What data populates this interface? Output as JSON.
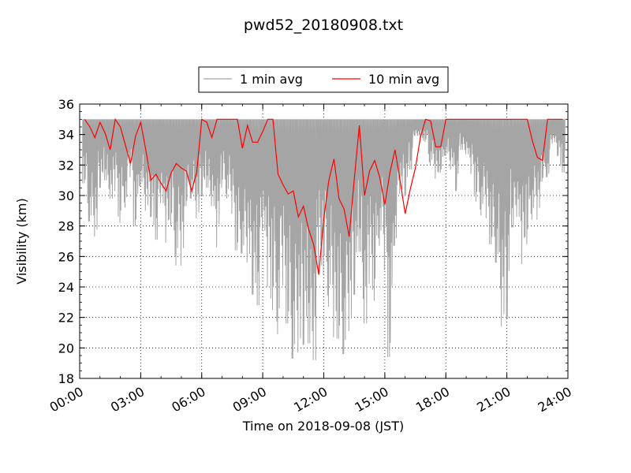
{
  "chart_data": {
    "type": "line",
    "title": "pwd52_20180908.txt",
    "xlabel": "Time on 2018-09-08 (JST)",
    "ylabel": "Visibility (km)",
    "xlim": [
      0,
      24
    ],
    "ylim": [
      18,
      36
    ],
    "grid": true,
    "legend_position": "top-center",
    "x_tick_labels": [
      "00:00",
      "03:00",
      "06:00",
      "09:00",
      "12:00",
      "15:00",
      "18:00",
      "21:00",
      "24:00"
    ],
    "y_tick_labels": [
      "18",
      "20",
      "22",
      "24",
      "26",
      "28",
      "30",
      "32",
      "34",
      "36"
    ],
    "sample_interval_hours": 0.25,
    "series": [
      {
        "name": "1 min avg",
        "color": "#a5a5a5",
        "x_start": 0.25,
        "upper": [
          35,
          35,
          35,
          35,
          35,
          35,
          35,
          35,
          35,
          35,
          35,
          35,
          35,
          35,
          35,
          35,
          35,
          35,
          35,
          35,
          35,
          35,
          35,
          35,
          35,
          35,
          35,
          35,
          35,
          35,
          35,
          35,
          35,
          35,
          35,
          35,
          35,
          35,
          35,
          35,
          35,
          35,
          35,
          35,
          35,
          35,
          35,
          35,
          35,
          35,
          35,
          35,
          35,
          35,
          35,
          35,
          35,
          35,
          35,
          35,
          35,
          35,
          35,
          35,
          35,
          35,
          35,
          35,
          35,
          35,
          35,
          35,
          35,
          35,
          35,
          35,
          35,
          35,
          35,
          35,
          35,
          35,
          35,
          35,
          35,
          35,
          35,
          35,
          35,
          35,
          35,
          35,
          35,
          35,
          35
        ],
        "lower": [
          30.8,
          28.3,
          27.3,
          30.5,
          31.0,
          29.8,
          30.3,
          28.2,
          29.2,
          31.2,
          28.0,
          30.6,
          29.0,
          28.6,
          27.1,
          29.5,
          26.9,
          28.0,
          25.4,
          25.4,
          29.3,
          29.8,
          28.5,
          30.0,
          30.5,
          29.3,
          26.6,
          30.5,
          29.8,
          28.8,
          26.4,
          26.2,
          25.6,
          23.5,
          22.8,
          27.7,
          24.0,
          22.5,
          20.9,
          24.1,
          21.6,
          19.3,
          19.7,
          20.2,
          20.3,
          19.2,
          24.9,
          24.8,
          22.7,
          20.7,
          20.6,
          19.6,
          21.1,
          23.5,
          26.3,
          21.6,
          24.2,
          23.1,
          26.7,
          25.1,
          19.4,
          26.7,
          30.1,
          30.0,
          31.7,
          33.9,
          33.5,
          33.5,
          32.0,
          31.1,
          31.5,
          32.6,
          31.7,
          30.3,
          33.0,
          32.7,
          31.4,
          29.6,
          28.7,
          28.5,
          26.8,
          25.6,
          21.4,
          21.9,
          27.9,
          28.6,
          25.5,
          26.8,
          28.4,
          28.4,
          30.9,
          31.2,
          33.4,
          32.6,
          31.5
        ]
      },
      {
        "name": "10 min avg",
        "color": "#ff0000",
        "x_start": 0.25,
        "values": [
          35.0,
          34.5,
          33.8,
          34.8,
          34.1,
          33.0,
          35.0,
          34.5,
          33.3,
          32.1,
          33.9,
          34.8,
          33.0,
          31.0,
          31.4,
          30.8,
          30.3,
          31.5,
          32.1,
          31.8,
          31.6,
          30.3,
          31.5,
          35.0,
          34.8,
          33.8,
          35.0,
          35.0,
          35.0,
          35.0,
          35.0,
          33.1,
          34.6,
          33.5,
          33.5,
          34.2,
          35.0,
          35.0,
          31.4,
          30.7,
          30.1,
          30.3,
          28.6,
          29.3,
          27.8,
          26.8,
          24.8,
          28.5,
          31.0,
          32.4,
          29.8,
          29.1,
          27.3,
          31.1,
          34.6,
          30.0,
          31.6,
          32.3,
          31.2,
          29.4,
          31.5,
          33.0,
          31.0,
          28.8,
          30.4,
          31.8,
          33.8,
          35.0,
          34.9,
          33.2,
          33.2,
          35.0,
          35.0,
          35.0,
          35.0,
          35.0,
          35.0,
          35.0,
          35.0,
          35.0,
          35.0,
          35.0,
          35.0,
          35.0,
          35.0,
          35.0,
          35.0,
          35.0,
          33.6,
          32.5,
          32.3,
          35.0,
          35.0,
          35.0,
          35.0
        ]
      }
    ]
  }
}
